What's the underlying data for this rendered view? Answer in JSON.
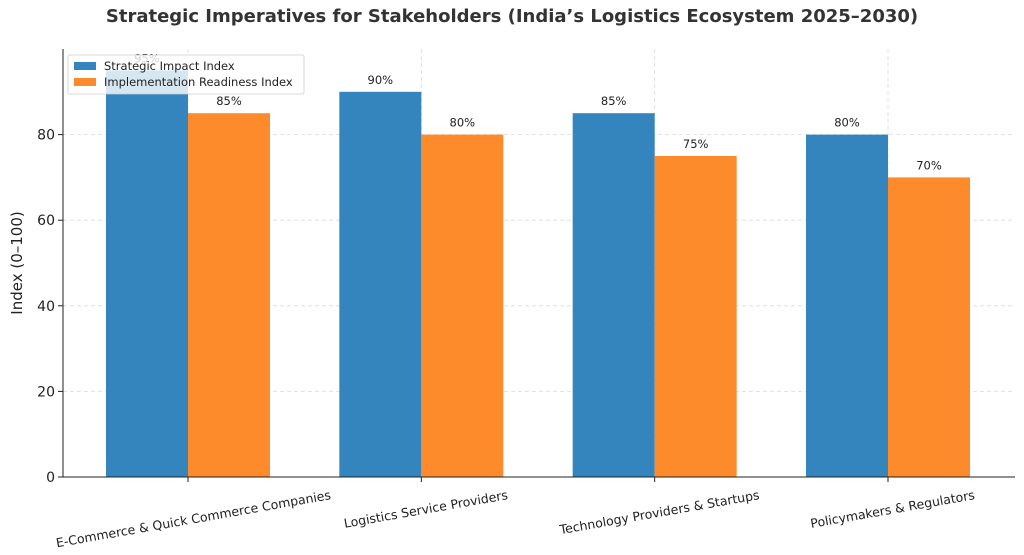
{
  "chart_data": {
    "type": "bar",
    "title": "Strategic Imperatives for Stakeholders (India’s Logistics Ecosystem 2025–2030)",
    "xlabel": "",
    "ylabel": "Index (0–100)",
    "categories": [
      "E-Commerce & Quick Commerce Companies",
      "Logistics Service Providers",
      "Technology Providers & Startups",
      "Policymakers & Regulators"
    ],
    "series": [
      {
        "name": "Strategic Impact Index",
        "color": "#3485bd",
        "values": [
          95,
          90,
          85,
          80
        ],
        "labels": [
          "95%",
          "90%",
          "85%",
          "80%"
        ]
      },
      {
        "name": "Implementation Readiness Index",
        "color": "#fd8b2c",
        "values": [
          85,
          80,
          75,
          70
        ],
        "labels": [
          "85%",
          "80%",
          "75%",
          "70%"
        ]
      }
    ],
    "ylim": [
      0,
      100
    ],
    "yticks": [
      0,
      20,
      40,
      60,
      80
    ],
    "grid": true,
    "legend_position": "top-left"
  }
}
